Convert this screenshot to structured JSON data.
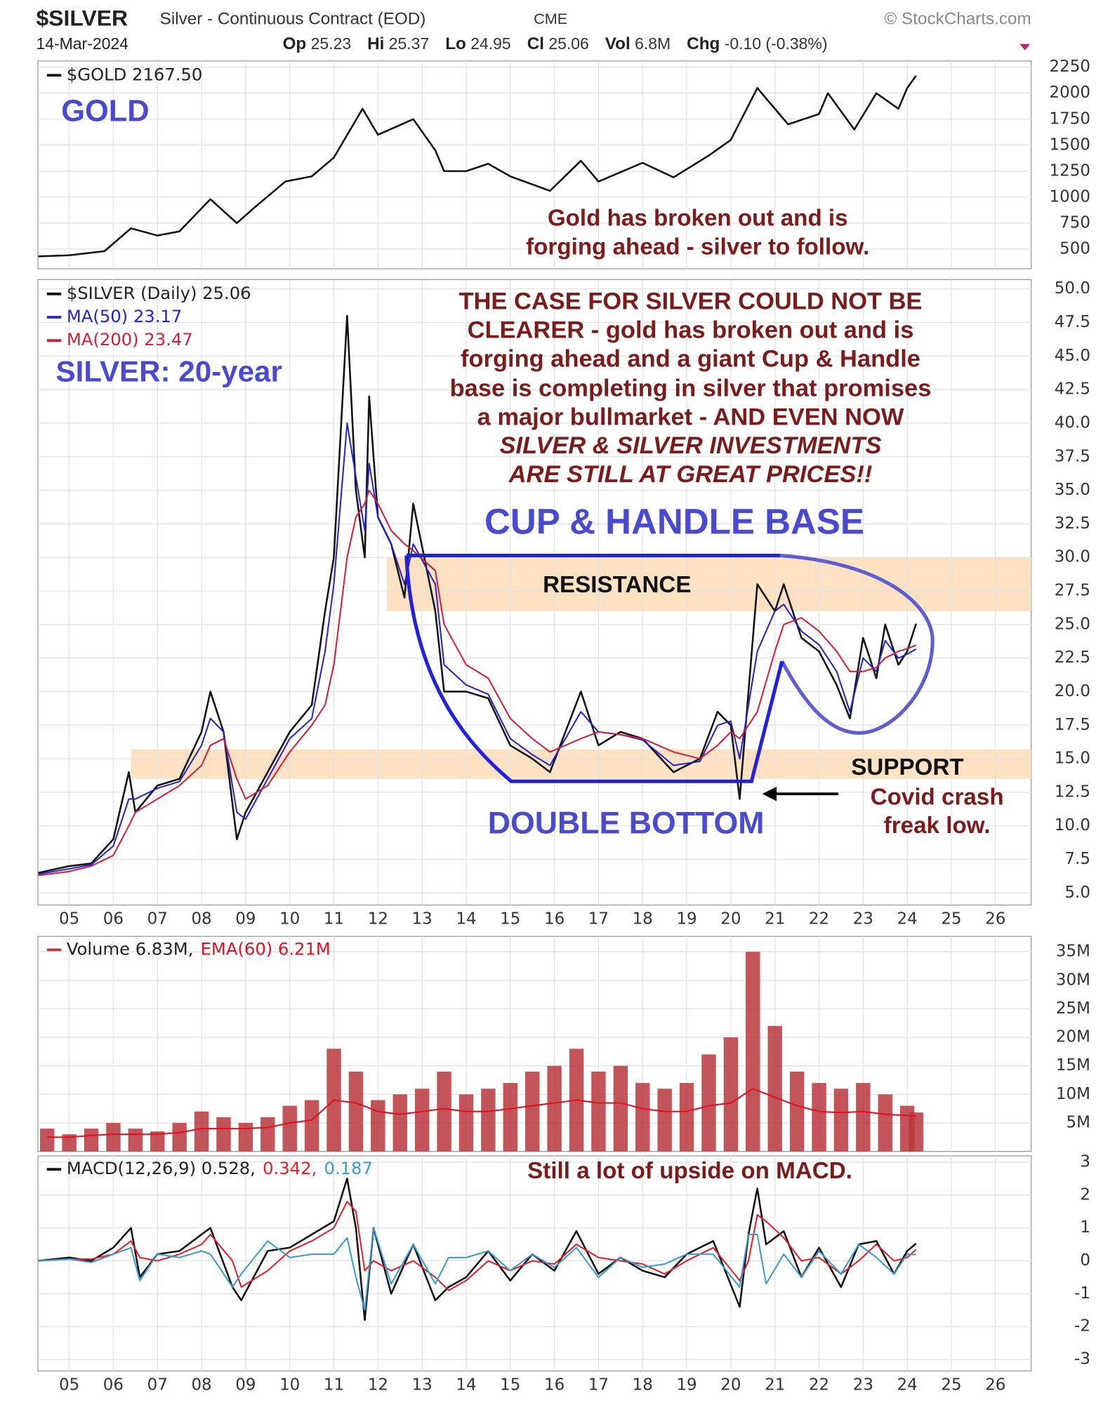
{
  "header": {
    "symbol": "$SILVER",
    "name": "Silver - Continuous Contract (EOD)",
    "exchange": "CME",
    "source": "© StockCharts.com",
    "date": "14-Mar-2024",
    "quote": [
      {
        "label": "Op",
        "value": "25.23"
      },
      {
        "label": "Hi",
        "value": "25.37"
      },
      {
        "label": "Lo",
        "value": "24.95"
      },
      {
        "label": "Cl",
        "value": "25.06"
      },
      {
        "label": "Vol",
        "value": "6.8M"
      },
      {
        "label": "Chg",
        "value": "-0.10 (-0.38%)"
      }
    ]
  },
  "chart_data": [
    {
      "type": "line",
      "xlim": [
        2004.29,
        2026.81
      ],
      "ylim": [
        310,
        2310
      ],
      "yticks": [
        500,
        750,
        1000,
        1250,
        1500,
        1750,
        2000,
        2250
      ],
      "xticks": [
        2005,
        2006,
        2007,
        2008,
        2009,
        2010,
        2011,
        2012,
        2013,
        2014,
        2015,
        2016,
        2017,
        2018,
        2019,
        2020,
        2021,
        2022,
        2023,
        2024,
        2025,
        2026
      ],
      "grid": true,
      "x": [
        2004.3,
        2005,
        2005.8,
        2006.4,
        2007,
        2007.5,
        2008.2,
        2008.8,
        2009.2,
        2009.9,
        2010.5,
        2011,
        2011.65,
        2012,
        2012.8,
        2013.3,
        2013.5,
        2014,
        2014.5,
        2015,
        2015.9,
        2016.6,
        2017,
        2018,
        2018.7,
        2019.5,
        2020,
        2020.6,
        2021,
        2021.3,
        2022,
        2022.2,
        2022.8,
        2023.3,
        2023.8,
        2024,
        2024.2
      ],
      "series": [
        {
          "name": "$GOLD 2167.50",
          "color": "#111111",
          "values": [
            430,
            440,
            480,
            700,
            630,
            670,
            980,
            750,
            900,
            1150,
            1200,
            1380,
            1850,
            1600,
            1750,
            1450,
            1250,
            1250,
            1320,
            1200,
            1060,
            1350,
            1150,
            1330,
            1190,
            1400,
            1550,
            2050,
            1850,
            1700,
            1800,
            2000,
            1650,
            2000,
            1850,
            2050,
            2167.5
          ]
        }
      ],
      "annotations": [
        "GOLD",
        "Gold has broken out and is",
        "forging ahead - silver to follow."
      ]
    },
    {
      "type": "line",
      "xlim": [
        2004.29,
        2026.81
      ],
      "ylim": [
        4.1,
        50.7
      ],
      "yticks": [
        {
          "value": 5,
          "label": "5.0"
        },
        7.5,
        {
          "value": 10,
          "label": "10.0"
        },
        12.5,
        {
          "value": 15,
          "label": "15.0"
        },
        17.5,
        {
          "value": 20,
          "label": "20.0"
        },
        22.5,
        {
          "value": 25,
          "label": "25.0"
        },
        27.5,
        {
          "value": 30,
          "label": "30.0"
        },
        32.5,
        {
          "value": 35,
          "label": "35.0"
        },
        37.5,
        {
          "value": 40,
          "label": "40.0"
        },
        42.5,
        {
          "value": 45,
          "label": "45.0"
        },
        47.5,
        {
          "value": 50,
          "label": "50.0"
        }
      ],
      "xticks": [
        {
          "value": 2005,
          "label": "05"
        },
        {
          "value": 2006,
          "label": "06"
        },
        {
          "value": 2007,
          "label": "07"
        },
        {
          "value": 2008,
          "label": "08"
        },
        {
          "value": 2009,
          "label": "09"
        },
        {
          "value": 2010,
          "label": "10"
        },
        {
          "value": 2011,
          "label": "11"
        },
        {
          "value": 2012,
          "label": "12"
        },
        {
          "value": 2013,
          "label": "13"
        },
        {
          "value": 2014,
          "label": "14"
        },
        {
          "value": 2015,
          "label": "15"
        },
        {
          "value": 2016,
          "label": "16"
        },
        {
          "value": 2017,
          "label": "17"
        },
        {
          "value": 2018,
          "label": "18"
        },
        {
          "value": 2019,
          "label": "19"
        },
        {
          "value": 2020,
          "label": "20"
        },
        {
          "value": 2021,
          "label": "21"
        },
        {
          "value": 2022,
          "label": "22"
        },
        {
          "value": 2023,
          "label": "23"
        },
        {
          "value": 2024,
          "label": "24"
        },
        {
          "value": 2025,
          "label": "25"
        },
        {
          "value": 2026,
          "label": "26"
        }
      ],
      "grid": true,
      "x": [
        2004.3,
        2005,
        2005.5,
        2006,
        2006.35,
        2006.5,
        2007,
        2007.5,
        2008,
        2008.2,
        2008.5,
        2008.8,
        2009,
        2009.5,
        2010,
        2010.5,
        2010.8,
        2011,
        2011.3,
        2011.5,
        2011.7,
        2011.8,
        2012,
        2012.3,
        2012.6,
        2012.8,
        2013.3,
        2013.5,
        2014,
        2014.5,
        2015,
        2015.5,
        2015.9,
        2016.6,
        2017,
        2017.5,
        2018,
        2018.7,
        2019.3,
        2019.7,
        2020,
        2020.2,
        2020.6,
        2021,
        2021.2,
        2021.6,
        2022,
        2022.4,
        2022.7,
        2023,
        2023.3,
        2023.5,
        2023.8,
        2024,
        2024.2
      ],
      "series": [
        {
          "name": "$SILVER (Daily) 25.06",
          "color": "#111111",
          "values": [
            6.5,
            7,
            7.2,
            9,
            14,
            11,
            13,
            13.5,
            17,
            20,
            17,
            9,
            11,
            14,
            17,
            19,
            26,
            30,
            48,
            35,
            30,
            42,
            33,
            31,
            27,
            34,
            26,
            20,
            20,
            19.5,
            16,
            15,
            14,
            20,
            16,
            17,
            16.5,
            14,
            15,
            18.5,
            17.5,
            12,
            28,
            26,
            28,
            24,
            23,
            20.5,
            18,
            24,
            21,
            25,
            22,
            23,
            25.06
          ]
        },
        {
          "name": "MA(50) 23.17",
          "color": "#2424c8",
          "values": [
            6.4,
            6.8,
            7.1,
            8.5,
            12,
            12,
            12.8,
            13.3,
            16,
            18,
            17,
            11,
            10.5,
            13.5,
            16.5,
            18,
            23,
            28,
            40,
            36,
            32,
            37,
            33,
            31,
            28,
            31,
            28,
            22,
            20.5,
            19.8,
            16.5,
            15.3,
            14.5,
            18.5,
            17,
            16.8,
            16.4,
            14.5,
            14.8,
            17.5,
            17.8,
            15,
            23,
            26,
            26.5,
            24.5,
            23.5,
            21.5,
            18.5,
            22.5,
            21.5,
            23.8,
            22.5,
            22.8,
            23.17
          ]
        },
        {
          "name": "MA(200) 23.47",
          "color": "#d0203a",
          "values": [
            6.3,
            6.6,
            7,
            7.8,
            10,
            11,
            12,
            13,
            14.5,
            16,
            16.5,
            13.5,
            12,
            13,
            15.5,
            17.5,
            19,
            22,
            30,
            33,
            34,
            35,
            34,
            32,
            31,
            30.5,
            29,
            25,
            22,
            21,
            18,
            16.5,
            15.5,
            16.5,
            17,
            16.8,
            16.5,
            15.5,
            15,
            16,
            17,
            16.5,
            18.5,
            23,
            25,
            25.5,
            24.5,
            23,
            21.5,
            21.5,
            21.8,
            22.5,
            23,
            23.2,
            23.47
          ]
        }
      ],
      "bands": [
        {
          "label": "RESISTANCE",
          "range": [
            26,
            30
          ],
          "xrange": [
            2012.2,
            2026.81
          ],
          "color": "#fbdcb8"
        },
        {
          "label": "SUPPORT",
          "range": [
            13.5,
            15.7
          ],
          "xrange": [
            2006.4,
            2026.81
          ],
          "color": "#fbdcb8"
        }
      ],
      "annotations": [
        "SILVER: 20-year",
        "THE CASE FOR SILVER COULD NOT BE",
        "CLEARER - gold has broken out and is",
        "forging ahead and a giant Cup & Handle",
        "base is completing in silver that promises",
        "a major bullmarket - AND EVEN NOW",
        "SILVER & SILVER INVESTMENTS",
        "ARE STILL AT GREAT PRICES!!",
        "CUP & HANDLE BASE",
        "DOUBLE BOTTOM",
        "Covid crash",
        "freak low."
      ]
    },
    {
      "type": "bar",
      "xlim": [
        2004.29,
        2026.81
      ],
      "ylim": [
        0,
        37700000
      ],
      "yticks": [
        {
          "value": 5000000,
          "label": "5M"
        },
        {
          "value": 10000000,
          "label": "10M"
        },
        {
          "value": 15000000,
          "label": "15M"
        },
        {
          "value": 20000000,
          "label": "20M"
        },
        {
          "value": 25000000,
          "label": "25M"
        },
        {
          "value": 30000000,
          "label": "30M"
        },
        {
          "value": 35000000,
          "label": "35M"
        }
      ],
      "xticks": [
        2005,
        2006,
        2007,
        2008,
        2009,
        2010,
        2011,
        2012,
        2013,
        2014,
        2015,
        2016,
        2017,
        2018,
        2019,
        2020,
        2021,
        2022,
        2023,
        2024,
        2025,
        2026
      ],
      "grid": true,
      "x": [
        2004.5,
        2005,
        2005.5,
        2006,
        2006.5,
        2007,
        2007.5,
        2008,
        2008.5,
        2009,
        2009.5,
        2010,
        2010.5,
        2011,
        2011.5,
        2012,
        2012.5,
        2013,
        2013.5,
        2014,
        2014.5,
        2015,
        2015.5,
        2016,
        2016.5,
        2017,
        2017.5,
        2018,
        2018.5,
        2019,
        2019.5,
        2020,
        2020.5,
        2021,
        2021.5,
        2022,
        2022.5,
        2023,
        2023.5,
        2024,
        2024.2
      ],
      "series": [
        {
          "name": "Volume 6.83M,",
          "color": "#b8363c",
          "values": [
            4000000,
            3000000,
            4000000,
            5000000,
            4000000,
            3500000,
            5000000,
            7000000,
            6000000,
            5000000,
            6000000,
            8000000,
            9000000,
            18000000,
            14000000,
            9000000,
            10000000,
            11000000,
            14000000,
            10000000,
            11000000,
            12000000,
            14000000,
            15000000,
            18000000,
            14000000,
            15000000,
            12000000,
            11000000,
            12000000,
            17000000,
            20000000,
            35000000,
            22000000,
            14000000,
            12000000,
            11000000,
            12000000,
            10000000,
            8000000,
            6830000
          ]
        },
        {
          "name": "EMA(60) 6.21M",
          "type": "line",
          "color": "#e01020",
          "values": [
            2500000,
            2500000,
            2800000,
            3000000,
            3000000,
            3000000,
            3300000,
            4000000,
            4000000,
            4000000,
            4200000,
            5000000,
            5500000,
            9000000,
            8500000,
            7000000,
            6500000,
            7000000,
            7500000,
            7000000,
            7000000,
            7500000,
            8000000,
            8500000,
            9000000,
            8500000,
            8500000,
            7500000,
            7000000,
            7000000,
            8000000,
            8500000,
            11000000,
            9500000,
            8000000,
            7000000,
            6800000,
            7000000,
            6500000,
            6300000,
            6210000
          ]
        }
      ]
    },
    {
      "type": "line",
      "xlim": [
        2004.29,
        2026.81
      ],
      "ylim": [
        -3.35,
        3.19
      ],
      "yticks": [
        -3,
        -2,
        -1,
        0,
        1,
        2,
        3
      ],
      "xticks": [
        {
          "value": 2005,
          "label": "05"
        },
        {
          "value": 2006,
          "label": "06"
        },
        {
          "value": 2007,
          "label": "07"
        },
        {
          "value": 2008,
          "label": "08"
        },
        {
          "value": 2009,
          "label": "09"
        },
        {
          "value": 2010,
          "label": "10"
        },
        {
          "value": 2011,
          "label": "11"
        },
        {
          "value": 2012,
          "label": "12"
        },
        {
          "value": 2013,
          "label": "13"
        },
        {
          "value": 2014,
          "label": "14"
        },
        {
          "value": 2015,
          "label": "15"
        },
        {
          "value": 2016,
          "label": "16"
        },
        {
          "value": 2017,
          "label": "17"
        },
        {
          "value": 2018,
          "label": "18"
        },
        {
          "value": 2019,
          "label": "19"
        },
        {
          "value": 2020,
          "label": "20"
        },
        {
          "value": 2021,
          "label": "21"
        },
        {
          "value": 2022,
          "label": "22"
        },
        {
          "value": 2023,
          "label": "23"
        },
        {
          "value": 2024,
          "label": "24"
        },
        {
          "value": 2025,
          "label": "25"
        },
        {
          "value": 2026,
          "label": "26"
        }
      ],
      "grid": true,
      "x": [
        2004.3,
        2005,
        2005.5,
        2006,
        2006.4,
        2006.6,
        2007,
        2007.5,
        2008,
        2008.2,
        2008.7,
        2008.9,
        2009.5,
        2010,
        2010.5,
        2011,
        2011.3,
        2011.5,
        2011.7,
        2011.9,
        2012.3,
        2012.8,
        2013.3,
        2013.6,
        2014,
        2014.5,
        2015,
        2015.5,
        2016,
        2016.5,
        2017,
        2017.5,
        2018,
        2018.5,
        2019,
        2019.6,
        2020.2,
        2020.4,
        2020.6,
        2020.8,
        2021.2,
        2021.6,
        2022,
        2022.5,
        2022.9,
        2023.3,
        2023.7,
        2024,
        2024.2
      ],
      "series": [
        {
          "name": "MACD(12,26,9) 0.528,",
          "color": "#111111",
          "values": [
            0,
            0.1,
            0,
            0.4,
            1,
            -0.5,
            0.2,
            0.3,
            0.8,
            1,
            -0.8,
            -1.2,
            0.3,
            0.4,
            0.8,
            1.2,
            2.5,
            1,
            -1.8,
            1,
            -1,
            0.5,
            -1.2,
            -0.8,
            -0.5,
            0.3,
            -0.6,
            0.2,
            -0.3,
            0.9,
            -0.4,
            0.1,
            -0.3,
            -0.5,
            0.2,
            0.6,
            -1.4,
            0.8,
            2.2,
            0.5,
            0.9,
            -0.5,
            0.4,
            -0.8,
            0.5,
            0.6,
            -0.4,
            0.3,
            0.528
          ]
        },
        {
          "name": "0.342,",
          "color": "#e0202a",
          "values": [
            0,
            0.05,
            0.05,
            0.2,
            0.6,
            0.1,
            0,
            0.2,
            0.5,
            0.8,
            0,
            -0.8,
            -0.3,
            0.3,
            0.6,
            1,
            1.8,
            1.5,
            -0.3,
            0,
            -0.3,
            0,
            -0.5,
            -0.9,
            -0.6,
            0,
            -0.3,
            0,
            -0.1,
            0.5,
            0.1,
            0,
            -0.1,
            -0.4,
            0,
            0.4,
            -0.6,
            0,
            1.4,
            1.2,
            0.7,
            0,
            0.1,
            -0.4,
            0,
            0.5,
            0,
            0.1,
            0.342
          ]
        },
        {
          "name": "0.187",
          "color": "#3a9ad0",
          "values": [
            0,
            0.05,
            -0.05,
            0.2,
            0.4,
            -0.6,
            0.2,
            0.1,
            0.3,
            0.2,
            -0.8,
            -0.4,
            0.6,
            0.1,
            0.2,
            0.2,
            0.7,
            -0.5,
            -1.5,
            1,
            -0.7,
            0.5,
            -0.7,
            0.1,
            0.1,
            0.3,
            -0.3,
            0.2,
            -0.2,
            0.4,
            -0.5,
            0.1,
            -0.2,
            -0.1,
            0.2,
            0.2,
            -0.8,
            0.8,
            0.8,
            -0.7,
            0.2,
            -0.5,
            0.3,
            -0.4,
            0.5,
            0.1,
            -0.4,
            0.2,
            0.187
          ]
        }
      ],
      "annotations": [
        "Still a lot of upside on MACD."
      ]
    }
  ]
}
